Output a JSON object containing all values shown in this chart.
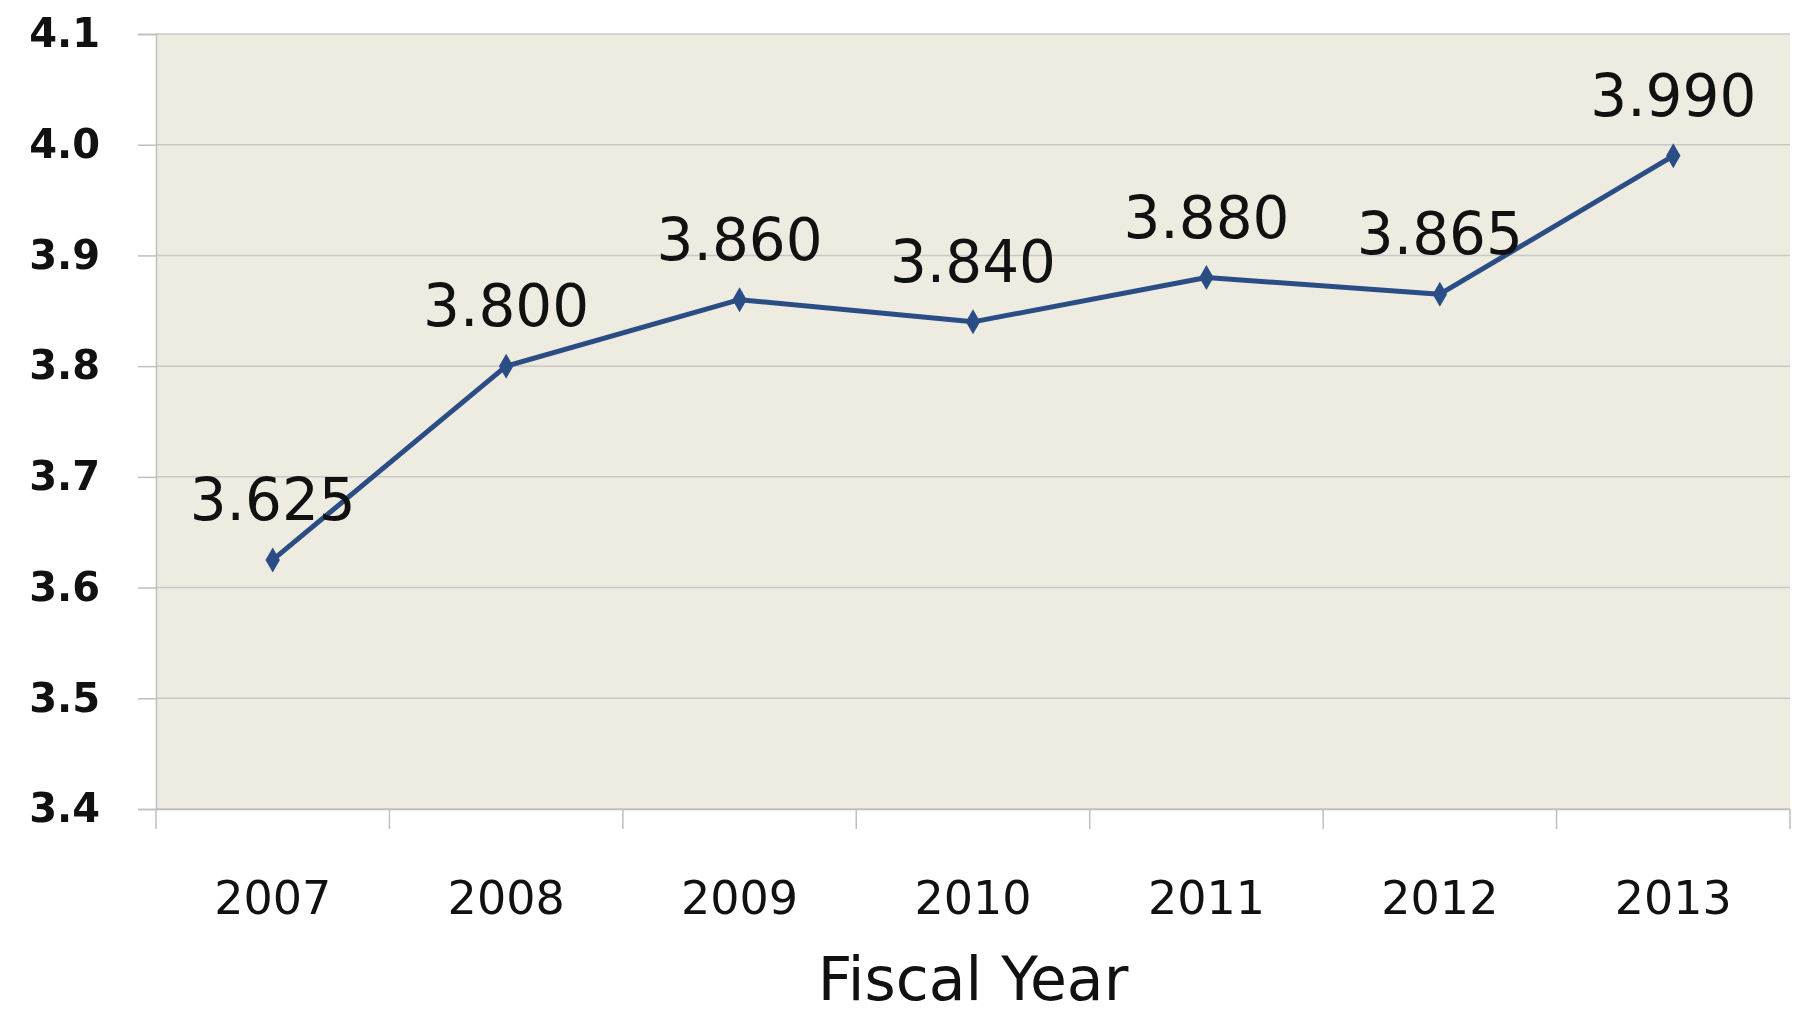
{
  "chart_data": {
    "type": "line",
    "xlabel": "Fiscal Year",
    "categories": [
      "2007",
      "2008",
      "2009",
      "2010",
      "2011",
      "2012",
      "2013"
    ],
    "series": [
      {
        "color": "#2a4d85",
        "values": [
          3.625,
          3.8,
          3.86,
          3.84,
          3.88,
          3.865,
          3.99
        ],
        "value_labels": [
          "3.625",
          "3.800",
          "3.860",
          "3.840",
          "3.880",
          "3.865",
          "3.990"
        ]
      }
    ],
    "ylim": [
      3.4,
      4.1
    ],
    "yticks": [
      3.4,
      3.5,
      3.6,
      3.7,
      3.8,
      3.9,
      {
        "value": 4.0,
        "label": "4.0"
      },
      4.1
    ],
    "grid": "y",
    "marker": "diamond",
    "line_style": "solid"
  }
}
